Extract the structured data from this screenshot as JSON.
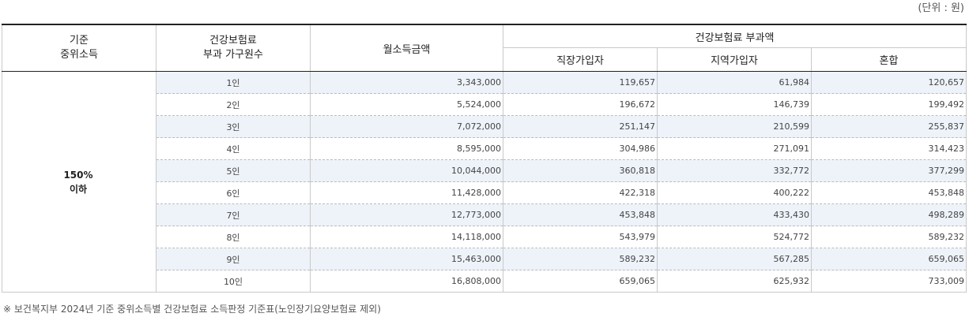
{
  "unit_label": "(단위 : 원)",
  "header": {
    "standard_line1": "기준",
    "standard_line2": "중위소득",
    "household_line1": "건강보험료",
    "household_line2": "부과 가구원수",
    "monthly_income": "월소득금액",
    "premium_group": "건강보험료 부과액",
    "employee": "직장가입자",
    "regional": "지역가입자",
    "mixed": "혼합"
  },
  "standard_cell": {
    "line1": "150%",
    "line2": "이하"
  },
  "rows": [
    {
      "people": "1인",
      "income": "3,343,000",
      "employee": "119,657",
      "regional": "61,984",
      "mixed": "120,657"
    },
    {
      "people": "2인",
      "income": "5,524,000",
      "employee": "196,672",
      "regional": "146,739",
      "mixed": "199,492"
    },
    {
      "people": "3인",
      "income": "7,072,000",
      "employee": "251,147",
      "regional": "210,599",
      "mixed": "255,837"
    },
    {
      "people": "4인",
      "income": "8,595,000",
      "employee": "304,986",
      "regional": "271,091",
      "mixed": "314,423"
    },
    {
      "people": "5인",
      "income": "10,044,000",
      "employee": "360,818",
      "regional": "332,772",
      "mixed": "377,299"
    },
    {
      "people": "6인",
      "income": "11,428,000",
      "employee": "422,318",
      "regional": "400,222",
      "mixed": "453,848"
    },
    {
      "people": "7인",
      "income": "12,773,000",
      "employee": "453,848",
      "regional": "433,430",
      "mixed": "498,289"
    },
    {
      "people": "8인",
      "income": "14,118,000",
      "employee": "543,979",
      "regional": "524,772",
      "mixed": "589,232"
    },
    {
      "people": "9인",
      "income": "15,463,000",
      "employee": "589,232",
      "regional": "567,285",
      "mixed": "659,065"
    },
    {
      "people": "10인",
      "income": "16,808,000",
      "employee": "659,065",
      "regional": "625,932",
      "mixed": "733,009"
    }
  ],
  "footnote": "※ 보건복지부 2024년 기준 중위소득별 건강보험료 소득판정 기준표(노인장기요양보험료 제외)"
}
